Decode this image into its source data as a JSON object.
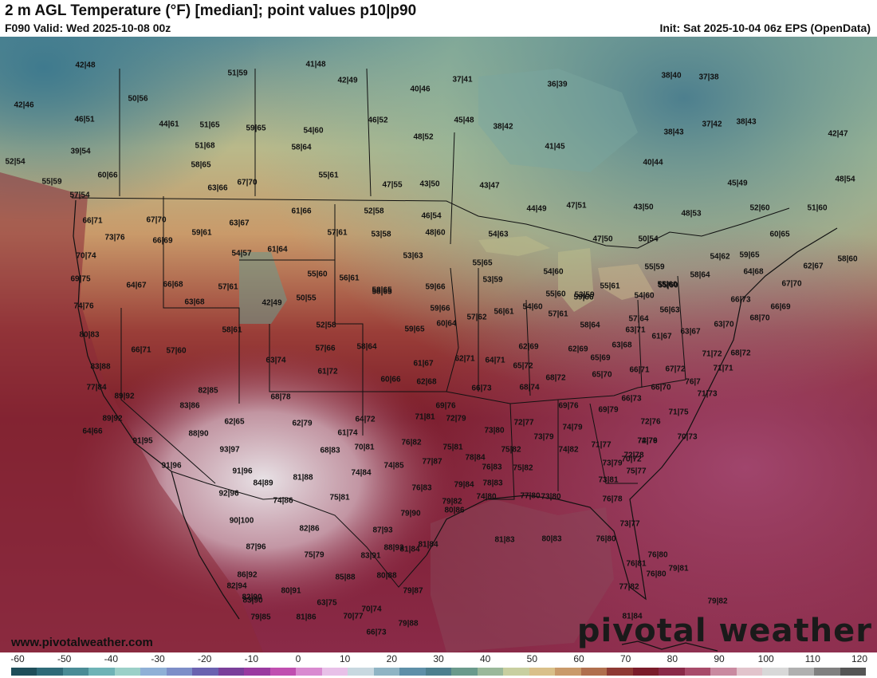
{
  "header": {
    "title": "2 m AGL Temperature (°F) [median]; point values p10|p90",
    "valid": "F090 Valid: Wed 2025-10-08 00z",
    "init": "Init: Sat 2025-10-04 06z EPS (OpenData)"
  },
  "footer": {
    "website": "www.pivotalweather.com",
    "brand": "pivotal weather"
  },
  "colorbar": {
    "ticks": [
      "-60",
      "-50",
      "-40",
      "-30",
      "-20",
      "-10",
      "0",
      "10",
      "20",
      "30",
      "40",
      "50",
      "60",
      "70",
      "80",
      "90",
      "100",
      "110",
      "120"
    ],
    "colors": [
      "#1f4e5a",
      "#2f6a78",
      "#4a8c96",
      "#6eb3b6",
      "#9bd0c8",
      "#8fb0d6",
      "#7d8ec8",
      "#6a62b0",
      "#7a3f9a",
      "#9a3aa0",
      "#c04fb0",
      "#d98ad0",
      "#e8c0e8",
      "#c8d8e0",
      "#8fb4c4",
      "#5e8fa8",
      "#4d7f8e",
      "#6a9a8c",
      "#9ab89a",
      "#c8cfa0",
      "#d9c08a",
      "#c99a6a",
      "#b06f4e",
      "#8e3a34",
      "#7a1c2a",
      "#8a2a48",
      "#a84b6a",
      "#c98aa0",
      "#e2c4cc",
      "#d8d8d8",
      "#b0b0b0",
      "#808080",
      "#555555"
    ]
  },
  "points": [
    {
      "label": "42|48"
    },
    {
      "label": "50|56"
    },
    {
      "label": "42|46"
    },
    {
      "label": "46|51"
    },
    {
      "label": "39|54"
    },
    {
      "label": "52|54"
    },
    {
      "label": "44|61"
    },
    {
      "label": "51|59"
    },
    {
      "label": "41|48"
    },
    {
      "label": "42|49"
    },
    {
      "label": "40|46"
    },
    {
      "label": "37|41"
    },
    {
      "label": "36|39"
    },
    {
      "label": "38|40"
    },
    {
      "label": "37|38"
    },
    {
      "label": "51|65"
    },
    {
      "label": "59|65"
    },
    {
      "label": "54|60"
    },
    {
      "label": "46|52"
    },
    {
      "label": "45|48"
    },
    {
      "label": "38|42"
    },
    {
      "label": "38|43"
    },
    {
      "label": "37|42"
    },
    {
      "label": "38|43"
    },
    {
      "label": "42|47"
    },
    {
      "label": "51|68"
    },
    {
      "label": "58|64"
    },
    {
      "label": "48|52"
    },
    {
      "label": "41|45"
    },
    {
      "label": "60|66"
    },
    {
      "label": "58|65"
    },
    {
      "label": "55|61"
    },
    {
      "label": "40|44"
    },
    {
      "label": "55|59"
    },
    {
      "label": "63|66"
    },
    {
      "label": "67|70"
    },
    {
      "label": "47|55"
    },
    {
      "label": "43|50"
    },
    {
      "label": "43|47"
    },
    {
      "label": "45|49"
    },
    {
      "label": "48|54"
    },
    {
      "label": "57|54"
    },
    {
      "label": "52|58"
    },
    {
      "label": "46|54"
    },
    {
      "label": "44|49"
    },
    {
      "label": "47|51"
    },
    {
      "label": "43|50"
    },
    {
      "label": "48|53"
    },
    {
      "label": "52|60"
    },
    {
      "label": "51|60"
    },
    {
      "label": "61|66"
    },
    {
      "label": "66|71"
    },
    {
      "label": "67|70"
    },
    {
      "label": "63|67"
    },
    {
      "label": "73|76"
    },
    {
      "label": "66|69"
    },
    {
      "label": "59|61"
    },
    {
      "label": "57|61"
    },
    {
      "label": "53|58"
    },
    {
      "label": "48|60"
    },
    {
      "label": "54|63"
    },
    {
      "label": "47|50"
    },
    {
      "label": "50|54"
    },
    {
      "label": "60|65"
    },
    {
      "label": "70|74"
    },
    {
      "label": "54|57"
    },
    {
      "label": "61|64"
    },
    {
      "label": "53|63"
    },
    {
      "label": "55|65"
    },
    {
      "label": "55|59"
    },
    {
      "label": "54|62"
    },
    {
      "label": "59|65"
    },
    {
      "label": "62|67"
    },
    {
      "label": "58|60"
    },
    {
      "label": "69|75"
    },
    {
      "label": "64|67"
    },
    {
      "label": "66|68"
    },
    {
      "label": "55|60"
    },
    {
      "label": "56|61"
    },
    {
      "label": "53|59"
    },
    {
      "label": "54|60"
    },
    {
      "label": "55|60"
    },
    {
      "label": "58|64"
    },
    {
      "label": "64|68"
    },
    {
      "label": "67|70"
    },
    {
      "label": "57|61"
    },
    {
      "label": "58|65"
    },
    {
      "label": "59|66"
    },
    {
      "label": "55|61"
    },
    {
      "label": "55|60"
    },
    {
      "label": "59|66"
    },
    {
      "label": "74|76"
    },
    {
      "label": "63|68"
    },
    {
      "label": "42|49"
    },
    {
      "label": "50|55"
    },
    {
      "label": "59|66"
    },
    {
      "label": "55|60"
    },
    {
      "label": "53|59"
    },
    {
      "label": "54|60"
    },
    {
      "label": "56|61"
    },
    {
      "label": "58|65"
    },
    {
      "label": "54|60"
    },
    {
      "label": "56|63"
    },
    {
      "label": "66|73"
    },
    {
      "label": "66|69"
    },
    {
      "label": "68|70"
    },
    {
      "label": "80|83"
    },
    {
      "label": "58|61"
    },
    {
      "label": "52|58"
    },
    {
      "label": "59|65"
    },
    {
      "label": "60|64"
    },
    {
      "label": "57|62"
    },
    {
      "label": "57|61"
    },
    {
      "label": "58|64"
    },
    {
      "label": "57|64"
    },
    {
      "label": "61|67"
    },
    {
      "label": "63|67"
    },
    {
      "label": "63|70"
    },
    {
      "label": "63|71"
    },
    {
      "label": "66|71"
    },
    {
      "label": "57|60"
    },
    {
      "label": "57|66"
    },
    {
      "label": "58|64"
    },
    {
      "label": "62|69"
    },
    {
      "label": "62|69"
    },
    {
      "label": "63|68"
    },
    {
      "label": "68|72"
    },
    {
      "label": "65|69"
    },
    {
      "label": "71|72"
    },
    {
      "label": "83|88"
    },
    {
      "label": "63|74"
    },
    {
      "label": "61|67"
    },
    {
      "label": "62|71"
    },
    {
      "label": "64|71"
    },
    {
      "label": "65|72"
    },
    {
      "label": "66|71"
    },
    {
      "label": "67|72"
    },
    {
      "label": "71|71"
    },
    {
      "label": "77|84"
    },
    {
      "label": "61|72"
    },
    {
      "label": "60|66"
    },
    {
      "label": "62|68"
    },
    {
      "label": "65|70"
    },
    {
      "label": "68|72"
    },
    {
      "label": "76|7"
    },
    {
      "label": "89|92"
    },
    {
      "label": "82|85"
    },
    {
      "label": "66|73"
    },
    {
      "label": "68|74"
    },
    {
      "label": "66|70"
    },
    {
      "label": "71|73"
    },
    {
      "label": "83|86"
    },
    {
      "label": "68|78"
    },
    {
      "label": "69|76"
    },
    {
      "label": "69|76"
    },
    {
      "label": "66|73"
    },
    {
      "label": "69|79"
    },
    {
      "label": "89|92"
    },
    {
      "label": "62|65"
    },
    {
      "label": "64|72"
    },
    {
      "label": "71|81"
    },
    {
      "label": "72|79"
    },
    {
      "label": "72|77"
    },
    {
      "label": "72|76"
    },
    {
      "label": "71|75"
    },
    {
      "label": "64|66"
    },
    {
      "label": "88|90"
    },
    {
      "label": "62|79"
    },
    {
      "label": "61|74"
    },
    {
      "label": "73|80"
    },
    {
      "label": "73|79"
    },
    {
      "label": "74|79"
    },
    {
      "label": "70|73"
    },
    {
      "label": "72|76"
    },
    {
      "label": "91|95"
    },
    {
      "label": "93|97"
    },
    {
      "label": "68|83"
    },
    {
      "label": "70|81"
    },
    {
      "label": "76|82"
    },
    {
      "label": "75|81"
    },
    {
      "label": "75|82"
    },
    {
      "label": "74|82"
    },
    {
      "label": "71|77"
    },
    {
      "label": "74|79"
    },
    {
      "label": "70|72"
    },
    {
      "label": "91|96"
    },
    {
      "label": "91|96"
    },
    {
      "label": "77|87"
    },
    {
      "label": "78|84"
    },
    {
      "label": "76|83"
    },
    {
      "label": "75|82"
    },
    {
      "label": "73|79"
    },
    {
      "label": "72|78"
    },
    {
      "label": "74|84"
    },
    {
      "label": "74|85"
    },
    {
      "label": "81|88"
    },
    {
      "label": "84|89"
    },
    {
      "label": "79|84"
    },
    {
      "label": "78|83"
    },
    {
      "label": "73|81"
    },
    {
      "label": "75|77"
    },
    {
      "label": "92|96"
    },
    {
      "label": "74|86"
    },
    {
      "label": "75|81"
    },
    {
      "label": "76|83"
    },
    {
      "label": "79|82"
    },
    {
      "label": "77|80"
    },
    {
      "label": "74|80"
    },
    {
      "label": "73|80"
    },
    {
      "label": "76|78"
    },
    {
      "label": "80|86"
    },
    {
      "label": "79|90"
    },
    {
      "label": "90|100"
    },
    {
      "label": "82|86"
    },
    {
      "label": "87|93"
    },
    {
      "label": "81|84"
    },
    {
      "label": "81|83"
    },
    {
      "label": "80|83"
    },
    {
      "label": "73|77"
    },
    {
      "label": "87|96"
    },
    {
      "label": "88|93"
    },
    {
      "label": "81|84"
    },
    {
      "label": "76|80"
    },
    {
      "label": "75|79"
    },
    {
      "label": "83|91"
    },
    {
      "label": "76|80"
    },
    {
      "label": "86|92"
    },
    {
      "label": "82|90"
    },
    {
      "label": "76|81"
    },
    {
      "label": "79|81"
    },
    {
      "label": "85|88"
    },
    {
      "label": "80|88"
    },
    {
      "label": "76|80"
    },
    {
      "label": "82|94"
    },
    {
      "label": "80|91"
    },
    {
      "label": "79|87"
    },
    {
      "label": "77|82"
    },
    {
      "label": "83|90"
    },
    {
      "label": "63|75"
    },
    {
      "label": "70|74"
    },
    {
      "label": "79|82"
    },
    {
      "label": "79|85"
    },
    {
      "label": "81|86"
    },
    {
      "label": "70|77"
    },
    {
      "label": "79|88"
    },
    {
      "label": "81|84"
    },
    {
      "label": "66|73"
    }
  ]
}
